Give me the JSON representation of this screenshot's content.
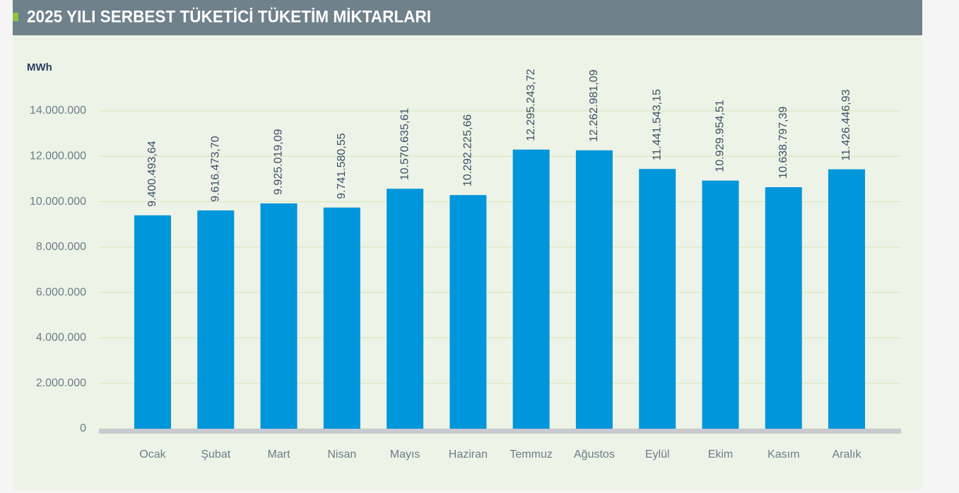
{
  "chart_data": {
    "type": "bar",
    "title": "2025 YILI SERBEST TÜKETİCİ TÜKETİM MİKTARLARI",
    "y_label": "MWh",
    "categories": [
      "Ocak",
      "Şubat",
      "Mart",
      "Nisan",
      "Mayıs",
      "Haziran",
      "Temmuz",
      "Ağustos",
      "Eylül",
      "Ekim",
      "Kasım",
      "Aralık"
    ],
    "values": [
      9400493.64,
      9616473.7,
      9925019.09,
      9741580.55,
      10570635.61,
      10292225.66,
      12295243.72,
      12262981.09,
      11441543.15,
      10929954.51,
      10638797.39,
      11426446.93
    ],
    "value_labels": [
      "9.400.493,64",
      "9.616.473,70",
      "9.925.019,09",
      "9.741.580,55",
      "10.570.635,61",
      "10.292.225,66",
      "12.295.243,72",
      "12.262.981,09",
      "11.441.543,15",
      "10.929.954,51",
      "10.638.797,39",
      "11.426.446,93"
    ],
    "color": "#0096db",
    "ylim": [
      0,
      14000000
    ],
    "yticks": [
      0,
      {
        "value": 2000000,
        "label": "2.000.000"
      },
      {
        "value": 4000000,
        "label": "4.000.000"
      },
      {
        "value": 6000000,
        "label": "6.000.000"
      },
      {
        "value": 8000000,
        "label": "8.000.000"
      },
      {
        "value": 10000000,
        "label": "10.000.000"
      },
      {
        "value": 12000000,
        "label": "12.000.000"
      },
      {
        "value": 14000000,
        "label": "14.000.000"
      }
    ],
    "grid": true
  }
}
